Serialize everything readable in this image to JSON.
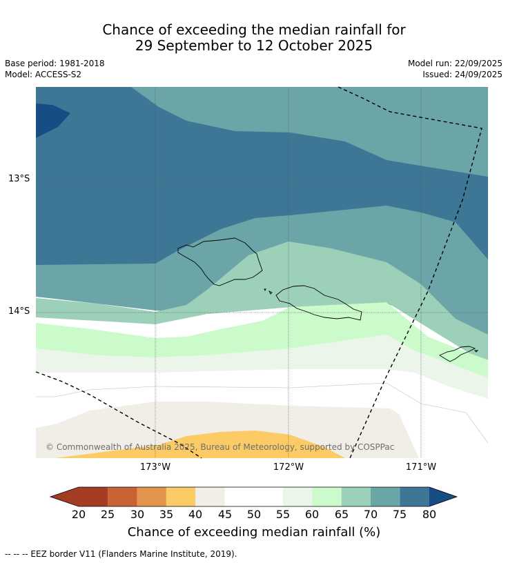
{
  "title": {
    "line1": "Chance of exceeding the median rainfall for",
    "line2": "29 September to 12 October 2025"
  },
  "meta": {
    "base_period": "Base period: 1981-2018",
    "model": "Model: ACCESS-S2",
    "model_run": "Model run: 22/09/2025",
    "issued": "Issued: 24/09/2025"
  },
  "map": {
    "lat_labels": [
      "13°S",
      "14°S"
    ],
    "lon_labels": [
      "173°W",
      "172°W",
      "171°W"
    ],
    "copyright": "© Commonwealth of Australia 2025, Bureau of Meteorology, supported by COSPPac",
    "colors": {
      "c20_25": "#a33c22",
      "c25_30": "#cb6234",
      "c30_35": "#e0954a",
      "c35_40": "#fccb66",
      "c40_45": "#f1ede7",
      "c45_55": "#ffffff",
      "c55_60": "#ebf5ea",
      "c60_65": "#cbfbcb",
      "c65_70": "#9cd0b8",
      "c70_75": "#6ca5a8",
      "c75_80": "#3e7696",
      "c80": "#164d84",
      "land_outline": "#000000",
      "grid": "#555555"
    }
  },
  "colorbar": {
    "ticks": [
      "20",
      "25",
      "30",
      "35",
      "40",
      "45",
      "50",
      "55",
      "60",
      "65",
      "70",
      "75",
      "80"
    ],
    "label": "Chance of exceeding median rainfall (%)"
  },
  "footnote": "-- -- -- EEZ border V11 (Flanders Marine Institute, 2019)."
}
